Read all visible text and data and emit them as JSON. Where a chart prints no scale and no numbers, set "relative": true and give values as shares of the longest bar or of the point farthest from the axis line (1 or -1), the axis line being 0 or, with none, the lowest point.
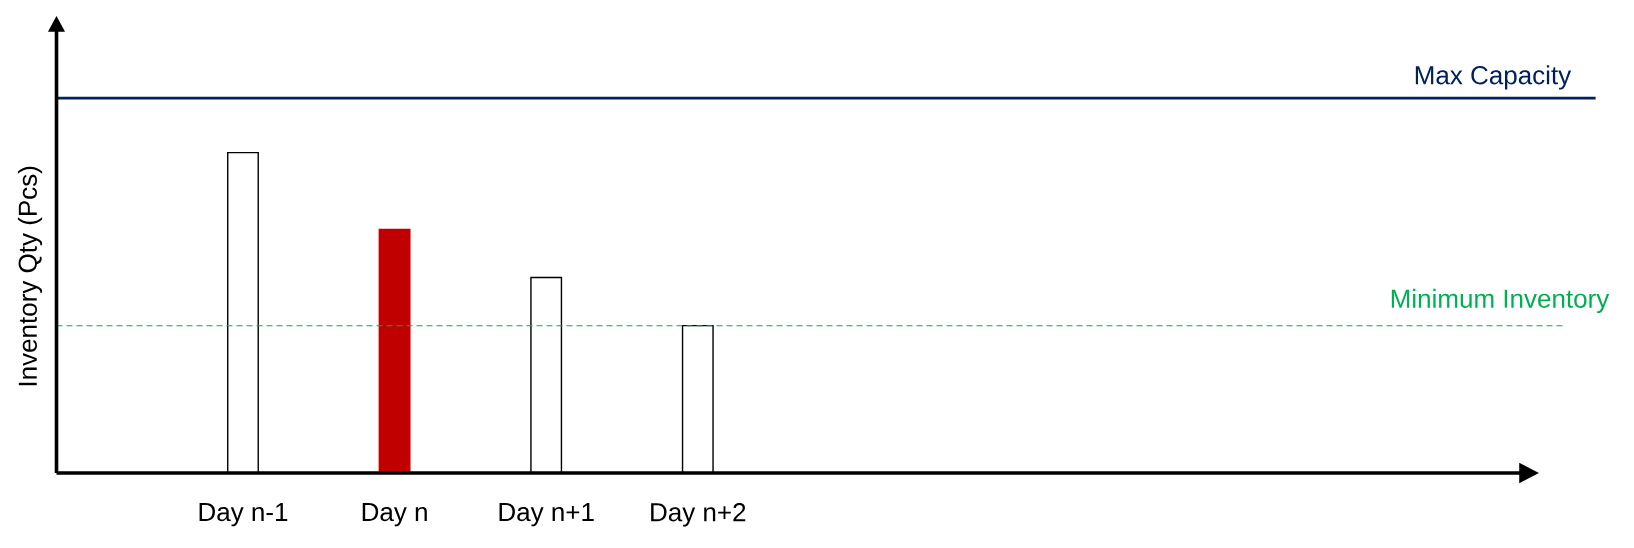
{
  "chart_data": {
    "type": "bar",
    "ylabel": "Inventory Qty (Pcs)",
    "categories": [
      "Day n-1",
      "Day n",
      "Day n+1",
      "Day n+2"
    ],
    "values": [
      1,
      0.76,
      0.61,
      0.46
    ],
    "colors": [
      "#ffffff",
      "#c00000",
      "#ffffff",
      "#ffffff"
    ],
    "relative": true,
    "ref_lines": [
      {
        "axis": "y",
        "value": 1.17,
        "label": "Max Capacity",
        "color": "#002060"
      },
      {
        "axis": "y",
        "value": 0.46,
        "label": "Minimum Inventory",
        "color": "#00b050",
        "line_style": "dashed"
      }
    ]
  }
}
